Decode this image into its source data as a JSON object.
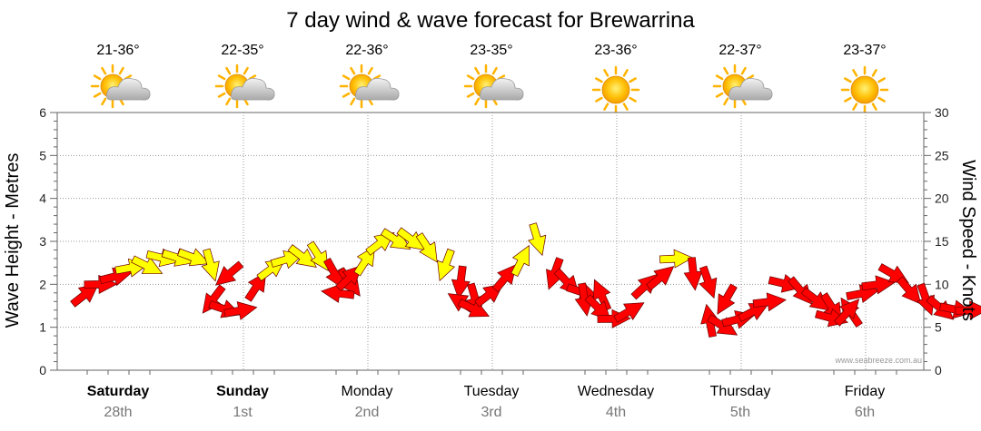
{
  "chart_data": {
    "type": "line",
    "title": "7 day wind & wave forecast for Brewarrina",
    "ylabel_left": "Wave Height - Metres",
    "ylabel_right": "Wind Speed - Knots",
    "ylim_left": [
      0,
      6
    ],
    "ylim_right": [
      0,
      30
    ],
    "left_ticks": [
      "0",
      "1",
      "2",
      "3",
      "4",
      "5",
      "6"
    ],
    "right_ticks": [
      "0",
      "5",
      "10",
      "15",
      "20",
      "25",
      "30"
    ],
    "credit": "www.seabreeze.com.au",
    "days": [
      {
        "name": "Saturday",
        "date": "28th",
        "temp": "21-36°",
        "icon": "sun-cloud-icon",
        "bold": true
      },
      {
        "name": "Sunday",
        "date": "1st",
        "temp": "22-35°",
        "icon": "sun-cloud-icon",
        "bold": true
      },
      {
        "name": "Monday",
        "date": "2nd",
        "temp": "22-36°",
        "icon": "sun-cloud-icon",
        "bold": false
      },
      {
        "name": "Tuesday",
        "date": "3rd",
        "temp": "23-35°",
        "icon": "sun-cloud-icon",
        "bold": false
      },
      {
        "name": "Wednesday",
        "date": "4th",
        "temp": "23-36°",
        "icon": "sun-icon",
        "bold": false
      },
      {
        "name": "Thursday",
        "date": "5th",
        "temp": "22-37°",
        "icon": "sun-cloud-icon",
        "bold": false
      },
      {
        "name": "Friday",
        "date": "6th",
        "temp": "23-37°",
        "icon": "sun-icon",
        "bold": false
      }
    ],
    "wind_series": {
      "name": "Wind Speed - Knots",
      "day_offsets": [
        -0.25,
        -0.125,
        0,
        0.125,
        0.25,
        0.375,
        0.5,
        0.625,
        0.75,
        0.875
      ],
      "knots": [
        [
          9,
          10,
          11,
          12,
          12,
          13,
          13,
          13,
          12,
          11
        ],
        [
          8,
          7,
          7,
          10,
          12,
          13,
          13,
          13,
          11,
          10
        ],
        [
          9,
          11,
          13,
          15,
          15,
          15,
          14,
          12,
          10,
          8
        ],
        [
          8,
          7,
          9,
          11,
          13,
          15,
          11,
          10,
          9,
          9
        ],
        [
          8,
          7,
          6,
          7,
          10,
          11,
          13,
          11,
          10,
          8
        ],
        [
          6,
          5,
          6,
          7,
          8,
          10,
          9,
          8,
          7,
          7
        ],
        [
          6,
          7,
          9,
          10,
          11,
          9,
          8,
          7,
          7,
          7
        ]
      ],
      "color_low": "#ff0000",
      "color_high": "#ffff00",
      "threshold_knots": 12
    },
    "colors": {
      "grid": "#999999",
      "axis": "#666666",
      "sun": "#ffb300",
      "cloud": "#c8c8c8",
      "arrow_outline": "#6a0000"
    }
  }
}
